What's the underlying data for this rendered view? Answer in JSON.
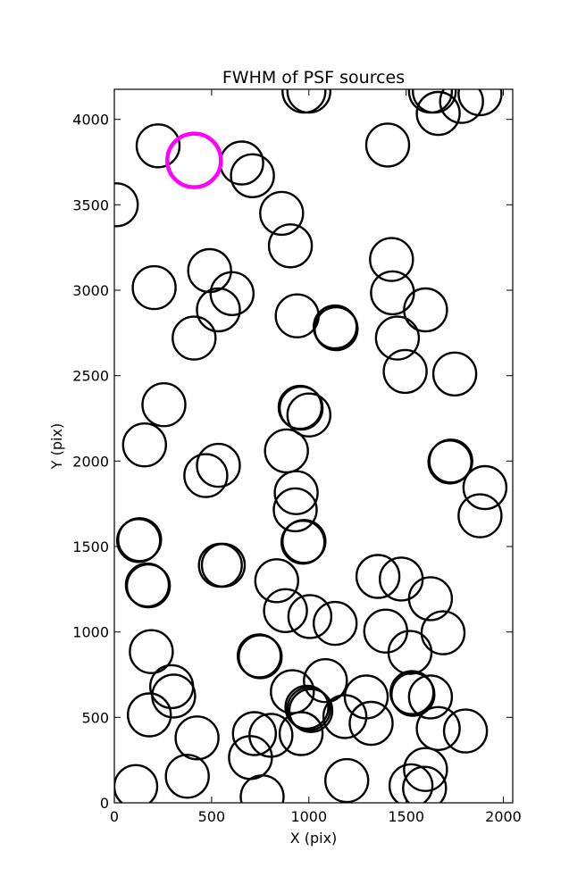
{
  "chart_data": {
    "type": "scatter",
    "title": "FWHM of PSF sources",
    "xlabel": "X (pix)",
    "ylabel": "Y (pix)",
    "xlim": [
      0,
      2048
    ],
    "ylim": [
      0,
      4176
    ],
    "xticks": [
      0,
      500,
      1000,
      1500,
      2000
    ],
    "yticks": [
      0,
      500,
      1000,
      1500,
      2000,
      2500,
      3000,
      3500,
      4000
    ],
    "grid": false,
    "marker": "open-circle",
    "marker_color": "#000000",
    "highlight_color": "#ff00ff",
    "marker_radius_px": 24,
    "highlight_radius_px": 30,
    "sources": [
      {
        "x": 10,
        "y": 3500
      },
      {
        "x": 225,
        "y": 3845
      },
      {
        "x": 655,
        "y": 3745
      },
      {
        "x": 710,
        "y": 3670
      },
      {
        "x": 860,
        "y": 3450
      },
      {
        "x": 905,
        "y": 3260
      },
      {
        "x": 975,
        "y": 4165
      },
      {
        "x": 1000,
        "y": 4165
      },
      {
        "x": 1405,
        "y": 3850
      },
      {
        "x": 1625,
        "y": 4165
      },
      {
        "x": 1645,
        "y": 4165
      },
      {
        "x": 1665,
        "y": 4035
      },
      {
        "x": 1785,
        "y": 4105
      },
      {
        "x": 1880,
        "y": 4150
      },
      {
        "x": 1425,
        "y": 3180
      },
      {
        "x": 490,
        "y": 3115
      },
      {
        "x": 205,
        "y": 3015
      },
      {
        "x": 605,
        "y": 2980
      },
      {
        "x": 535,
        "y": 2885
      },
      {
        "x": 410,
        "y": 2720
      },
      {
        "x": 940,
        "y": 2850
      },
      {
        "x": 1135,
        "y": 2785
      },
      {
        "x": 1140,
        "y": 2775
      },
      {
        "x": 1430,
        "y": 2985
      },
      {
        "x": 1600,
        "y": 2885
      },
      {
        "x": 1455,
        "y": 2720
      },
      {
        "x": 1495,
        "y": 2525
      },
      {
        "x": 1750,
        "y": 2510
      },
      {
        "x": 255,
        "y": 2330
      },
      {
        "x": 955,
        "y": 2315
      },
      {
        "x": 960,
        "y": 2310
      },
      {
        "x": 1000,
        "y": 2270
      },
      {
        "x": 155,
        "y": 2095
      },
      {
        "x": 885,
        "y": 2060
      },
      {
        "x": 535,
        "y": 1975
      },
      {
        "x": 470,
        "y": 1915
      },
      {
        "x": 1730,
        "y": 2000
      },
      {
        "x": 1725,
        "y": 1995
      },
      {
        "x": 1905,
        "y": 1845
      },
      {
        "x": 1880,
        "y": 1680
      },
      {
        "x": 935,
        "y": 1815
      },
      {
        "x": 930,
        "y": 1715
      },
      {
        "x": 975,
        "y": 1530
      },
      {
        "x": 970,
        "y": 1525
      },
      {
        "x": 130,
        "y": 1540
      },
      {
        "x": 125,
        "y": 1535
      },
      {
        "x": 170,
        "y": 1275
      },
      {
        "x": 175,
        "y": 1270
      },
      {
        "x": 545,
        "y": 1390
      },
      {
        "x": 560,
        "y": 1390
      },
      {
        "x": 835,
        "y": 1300
      },
      {
        "x": 880,
        "y": 1125
      },
      {
        "x": 1005,
        "y": 1090
      },
      {
        "x": 1135,
        "y": 1050
      },
      {
        "x": 1355,
        "y": 1325
      },
      {
        "x": 1475,
        "y": 1310
      },
      {
        "x": 1625,
        "y": 1195
      },
      {
        "x": 1395,
        "y": 1005
      },
      {
        "x": 1520,
        "y": 880
      },
      {
        "x": 1690,
        "y": 995
      },
      {
        "x": 190,
        "y": 885
      },
      {
        "x": 745,
        "y": 860
      },
      {
        "x": 750,
        "y": 855
      },
      {
        "x": 295,
        "y": 680
      },
      {
        "x": 305,
        "y": 625
      },
      {
        "x": 180,
        "y": 515
      },
      {
        "x": 425,
        "y": 380
      },
      {
        "x": 915,
        "y": 650
      },
      {
        "x": 1085,
        "y": 715
      },
      {
        "x": 990,
        "y": 560
      },
      {
        "x": 1000,
        "y": 550
      },
      {
        "x": 1010,
        "y": 540
      },
      {
        "x": 1295,
        "y": 620
      },
      {
        "x": 1185,
        "y": 505
      },
      {
        "x": 1320,
        "y": 465
      },
      {
        "x": 1530,
        "y": 645
      },
      {
        "x": 1535,
        "y": 635
      },
      {
        "x": 1625,
        "y": 620
      },
      {
        "x": 1665,
        "y": 435
      },
      {
        "x": 1805,
        "y": 420
      },
      {
        "x": 720,
        "y": 405
      },
      {
        "x": 805,
        "y": 395
      },
      {
        "x": 960,
        "y": 405
      },
      {
        "x": 700,
        "y": 265
      },
      {
        "x": 375,
        "y": 155
      },
      {
        "x": 110,
        "y": 95
      },
      {
        "x": 760,
        "y": 35
      },
      {
        "x": 1195,
        "y": 130
      },
      {
        "x": 1525,
        "y": 100
      },
      {
        "x": 1600,
        "y": 195
      },
      {
        "x": 1595,
        "y": 85
      }
    ],
    "highlight": [
      {
        "x": 410,
        "y": 3760
      }
    ]
  }
}
